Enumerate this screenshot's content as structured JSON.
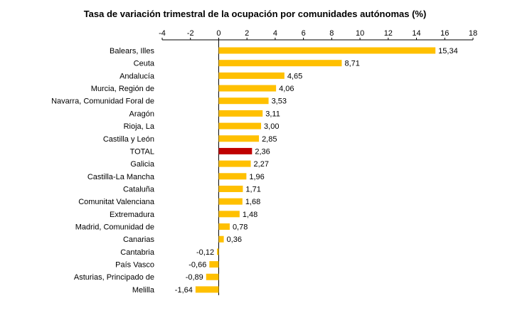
{
  "chart_data": {
    "type": "bar",
    "orientation": "horizontal",
    "title": "Tasa de variación trimestral de la ocupación por comunidades autónomas (%)",
    "xlabel": "",
    "ylabel": "",
    "xlim": [
      -4,
      18
    ],
    "x_ticks": [
      "-4",
      "-2",
      "0",
      "2",
      "4",
      "6",
      "8",
      "10",
      "12",
      "14",
      "16",
      "18"
    ],
    "grid": false,
    "legend": "none",
    "colors": {
      "bar": "#FFC000",
      "highlight": "#C00000"
    },
    "highlight_category": "TOTAL",
    "categories": [
      "Balears, Illes",
      "Ceuta",
      "Andalucía",
      "Murcia, Región de",
      "Navarra, Comunidad Foral de",
      "Aragón",
      "Rioja, La",
      "Castilla y León",
      "TOTAL",
      "Galicia",
      "Castilla-La Mancha",
      "Cataluña",
      "Comunitat Valenciana",
      "Extremadura",
      "Madrid, Comunidad de",
      "Canarias",
      "Cantabria",
      "País Vasco",
      "Asturias, Principado de",
      "Melilla"
    ],
    "values": [
      15.34,
      8.71,
      4.65,
      4.06,
      3.53,
      3.11,
      3.0,
      2.85,
      2.36,
      2.27,
      1.96,
      1.71,
      1.68,
      1.48,
      0.78,
      0.36,
      -0.12,
      -0.66,
      -0.89,
      -1.64
    ],
    "value_labels": [
      "15,34",
      "8,71",
      "4,65",
      "4,06",
      "3,53",
      "3,11",
      "3,00",
      "2,85",
      "2,36",
      "2,27",
      "1,96",
      "1,71",
      "1,68",
      "1,48",
      "0,78",
      "0,36",
      "-0,12",
      "-0,66",
      "-0,89",
      "-1,64"
    ]
  }
}
